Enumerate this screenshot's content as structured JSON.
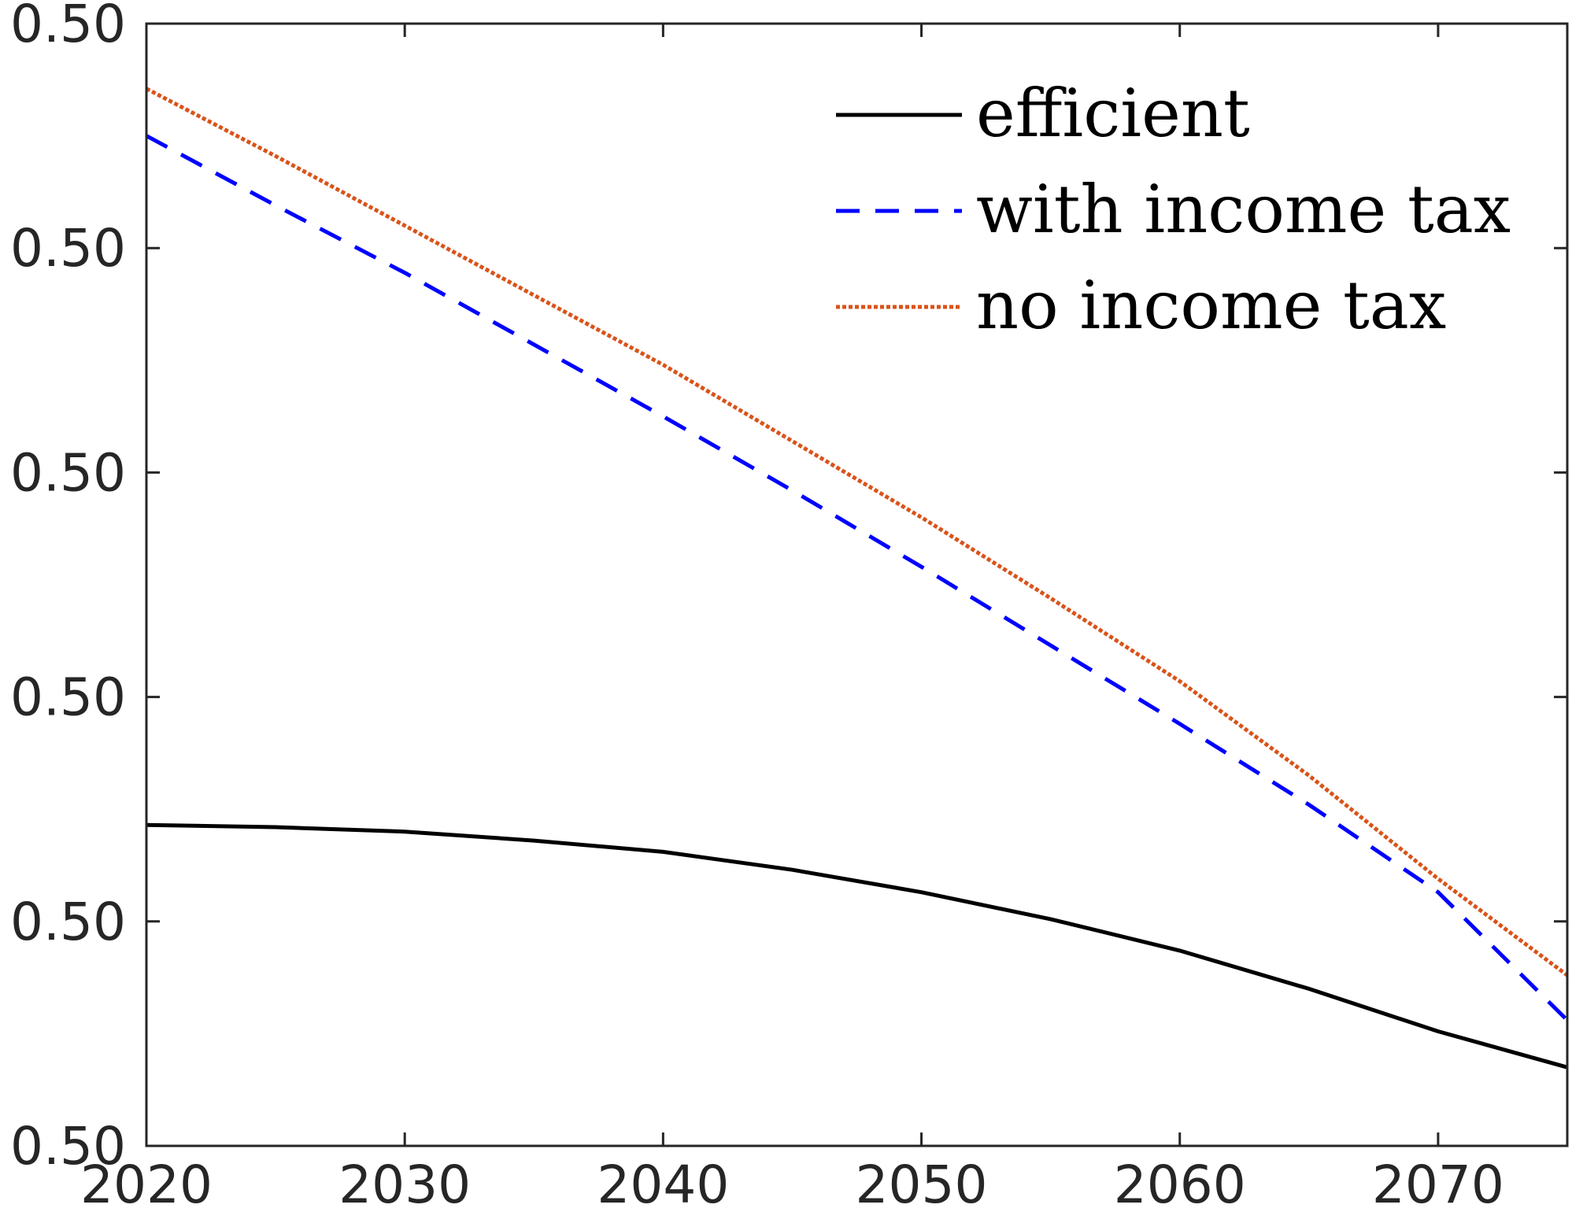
{
  "chart_data": {
    "type": "line",
    "title": "",
    "xlabel": "",
    "ylabel": "",
    "xlim": [
      2020,
      2075
    ],
    "ylim": [
      0,
      5
    ],
    "x_ticks": [
      2020,
      2030,
      2040,
      2050,
      2060,
      2070
    ],
    "x_tick_labels": [
      "2020",
      "2030",
      "2040",
      "2050",
      "2060",
      "2070"
    ],
    "y_tick_labels": [
      "0.50",
      "0.50",
      "0.50",
      "0.50",
      "0.50",
      "0.50"
    ],
    "grid": false,
    "legend_position": "top-right",
    "x": [
      2020,
      2025,
      2030,
      2035,
      2040,
      2045,
      2050,
      2055,
      2060,
      2065,
      2070,
      2075
    ],
    "series": [
      {
        "name": "efficient",
        "color": "#000000",
        "style": "solid",
        "values": [
          1.43,
          1.42,
          1.4,
          1.36,
          1.31,
          1.23,
          1.13,
          1.01,
          0.87,
          0.7,
          0.51,
          0.35
        ]
      },
      {
        "name": "with income tax",
        "color": "#0000ff",
        "style": "dashed",
        "values": [
          4.5,
          4.19,
          3.89,
          3.57,
          3.25,
          2.92,
          2.58,
          2.23,
          1.88,
          1.52,
          1.13,
          0.56
        ]
      },
      {
        "name": "no income tax",
        "color": "#d95319",
        "style": "dotted",
        "values": [
          4.71,
          4.41,
          4.1,
          3.79,
          3.48,
          3.14,
          2.8,
          2.44,
          2.07,
          1.65,
          1.19,
          0.76
        ]
      }
    ]
  }
}
